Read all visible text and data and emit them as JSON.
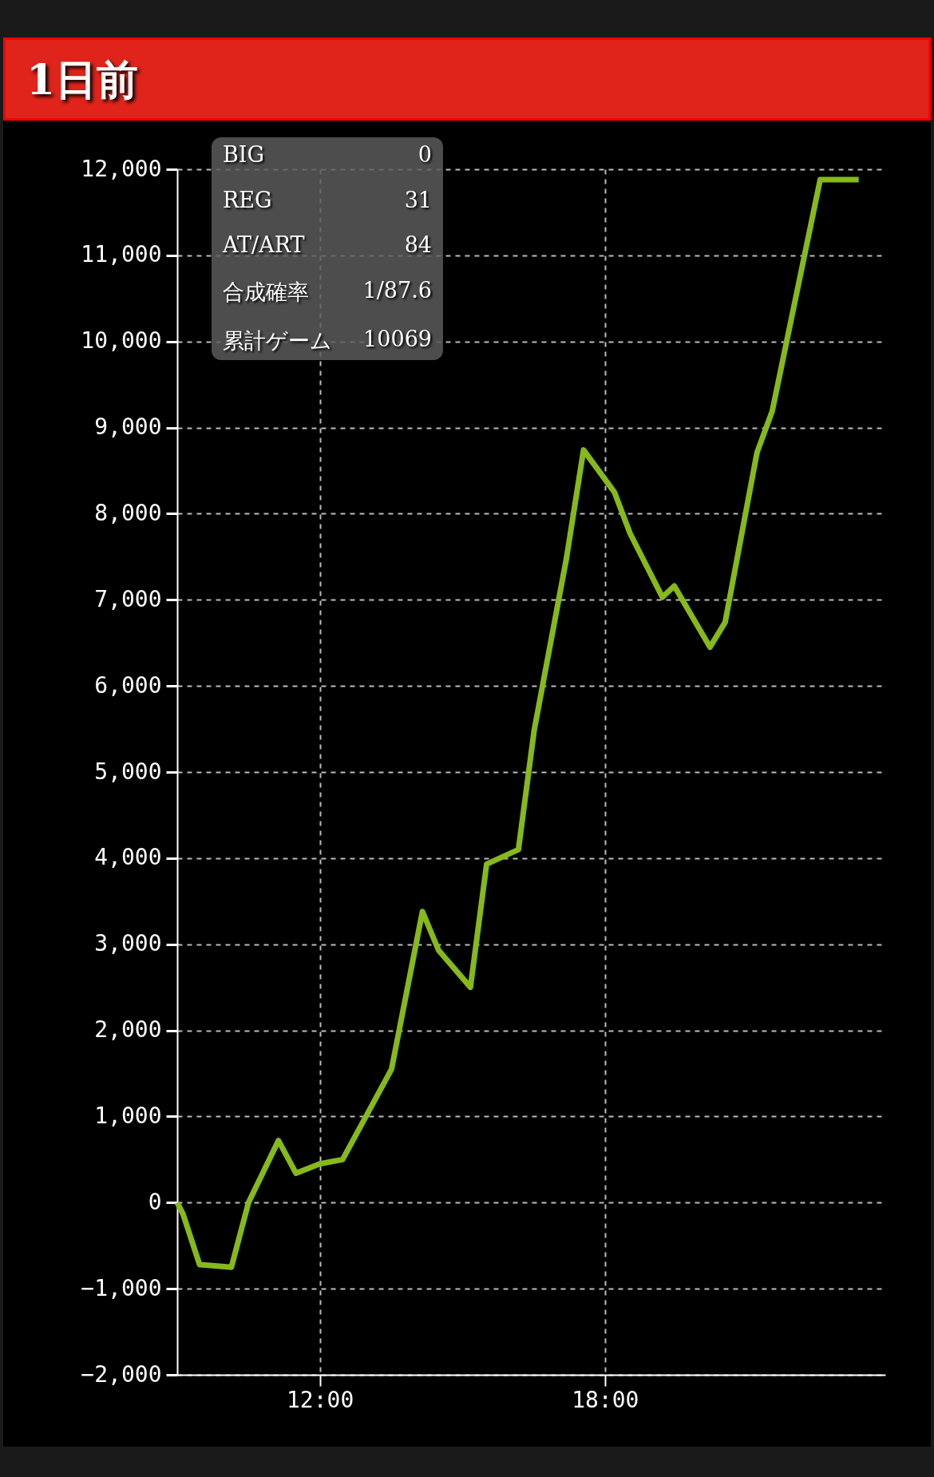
{
  "chart_data": {
    "type": "line",
    "title": "1日前",
    "x": [
      9.0,
      9.12,
      9.47,
      10.14,
      10.5,
      11.13,
      11.5,
      12.0,
      12.48,
      13.51,
      14.16,
      14.5,
      15.17,
      15.51,
      16.18,
      16.51,
      17.19,
      17.55,
      18.2,
      18.53,
      19.21,
      19.46,
      20.21,
      20.53,
      21.2,
      21.52,
      22.53,
      23.34
    ],
    "series": [
      {
        "color": "#86b91a",
        "values": [
          0,
          -130,
          -720,
          -750,
          0,
          720,
          340,
          450,
          500,
          1550,
          3380,
          2930,
          2500,
          3930,
          4100,
          5480,
          7480,
          8740,
          8250,
          7770,
          7030,
          7160,
          6450,
          6740,
          8710,
          9190,
          11880,
          11880
        ]
      }
    ],
    "xlim": [
      9,
      23.9
    ],
    "xticks": [
      {
        "value": 12,
        "label": "12:00"
      },
      {
        "value": 18,
        "label": "18:00"
      }
    ],
    "ylim": [
      -2000,
      12000
    ],
    "yticks": [
      {
        "value": -2000,
        "label": "−2,000"
      },
      {
        "value": -1000,
        "label": "−1,000"
      },
      0,
      {
        "value": 1000,
        "label": "1,000"
      },
      {
        "value": 2000,
        "label": "2,000"
      },
      {
        "value": 3000,
        "label": "3,000"
      },
      {
        "value": 4000,
        "label": "4,000"
      },
      {
        "value": 5000,
        "label": "5,000"
      },
      {
        "value": 6000,
        "label": "6,000"
      },
      {
        "value": 7000,
        "label": "7,000"
      },
      {
        "value": 8000,
        "label": "8,000"
      },
      {
        "value": 9000,
        "label": "9,000"
      },
      {
        "value": 10000,
        "label": "10,000"
      },
      {
        "value": 11000,
        "label": "11,000"
      },
      {
        "value": 12000,
        "label": "12,000"
      }
    ],
    "grid": true,
    "line_style": "solid",
    "marker": "none",
    "annotations": [
      "BIG",
      "0",
      "REG",
      "31",
      "AT/ART",
      "84",
      "合成確率",
      "1/87.6",
      "累計ゲーム",
      "10069"
    ]
  }
}
